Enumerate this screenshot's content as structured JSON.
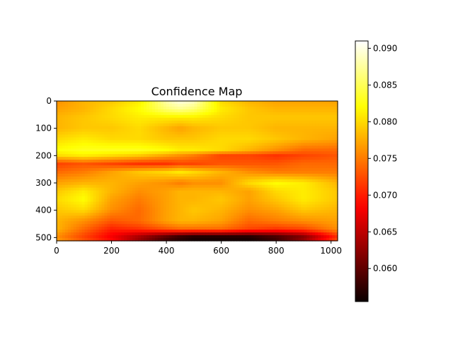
{
  "chart_data": {
    "type": "heatmap",
    "title": "Confidence Map",
    "xlabel": "",
    "ylabel": "",
    "colormap": "hot",
    "x_ticks": [
      "0",
      "200",
      "400",
      "600",
      "800",
      "1000"
    ],
    "y_ticks": [
      "0",
      "100",
      "200",
      "300",
      "400",
      "500"
    ],
    "xlim": [
      0,
      1024
    ],
    "ylim": [
      512,
      0
    ],
    "colorbar": {
      "ticks": [
        "0.060",
        "0.065",
        "0.070",
        "0.075",
        "0.080",
        "0.085",
        "0.090"
      ],
      "range": [
        0.0555,
        0.091
      ]
    },
    "grid": false,
    "x_samples": [
      0,
      100,
      200,
      300,
      400,
      450,
      500,
      600,
      700,
      800,
      900,
      1024
    ],
    "y_samples": [
      0,
      30,
      60,
      100,
      140,
      180,
      200,
      230,
      260,
      300,
      330,
      360,
      400,
      440,
      470,
      495,
      512
    ],
    "values": [
      [
        0.076,
        0.078,
        0.079,
        0.081,
        0.088,
        0.09,
        0.089,
        0.08,
        0.078,
        0.077,
        0.077,
        0.077
      ],
      [
        0.077,
        0.078,
        0.08,
        0.082,
        0.086,
        0.087,
        0.086,
        0.081,
        0.079,
        0.078,
        0.078,
        0.078
      ],
      [
        0.078,
        0.079,
        0.08,
        0.081,
        0.081,
        0.081,
        0.081,
        0.08,
        0.079,
        0.079,
        0.079,
        0.079
      ],
      [
        0.078,
        0.079,
        0.079,
        0.08,
        0.078,
        0.077,
        0.078,
        0.079,
        0.079,
        0.078,
        0.078,
        0.078
      ],
      [
        0.08,
        0.081,
        0.08,
        0.08,
        0.079,
        0.079,
        0.079,
        0.08,
        0.08,
        0.079,
        0.078,
        0.077
      ],
      [
        0.082,
        0.083,
        0.083,
        0.083,
        0.082,
        0.081,
        0.081,
        0.08,
        0.078,
        0.076,
        0.074,
        0.074
      ],
      [
        0.08,
        0.081,
        0.08,
        0.079,
        0.077,
        0.076,
        0.075,
        0.072,
        0.072,
        0.071,
        0.072,
        0.073
      ],
      [
        0.072,
        0.073,
        0.072,
        0.071,
        0.071,
        0.072,
        0.072,
        0.073,
        0.073,
        0.073,
        0.074,
        0.074
      ],
      [
        0.074,
        0.075,
        0.077,
        0.079,
        0.08,
        0.081,
        0.08,
        0.078,
        0.076,
        0.075,
        0.075,
        0.075
      ],
      [
        0.077,
        0.078,
        0.078,
        0.077,
        0.076,
        0.075,
        0.076,
        0.076,
        0.08,
        0.082,
        0.081,
        0.078
      ],
      [
        0.079,
        0.081,
        0.078,
        0.076,
        0.077,
        0.078,
        0.078,
        0.078,
        0.077,
        0.08,
        0.081,
        0.079
      ],
      [
        0.08,
        0.082,
        0.077,
        0.075,
        0.077,
        0.078,
        0.078,
        0.079,
        0.077,
        0.079,
        0.081,
        0.079
      ],
      [
        0.079,
        0.08,
        0.076,
        0.074,
        0.077,
        0.078,
        0.079,
        0.078,
        0.076,
        0.077,
        0.079,
        0.078
      ],
      [
        0.078,
        0.076,
        0.073,
        0.074,
        0.077,
        0.078,
        0.078,
        0.077,
        0.074,
        0.075,
        0.076,
        0.077
      ],
      [
        0.078,
        0.074,
        0.07,
        0.071,
        0.073,
        0.074,
        0.074,
        0.074,
        0.072,
        0.071,
        0.072,
        0.076
      ],
      [
        0.076,
        0.072,
        0.068,
        0.064,
        0.06,
        0.058,
        0.057,
        0.057,
        0.057,
        0.059,
        0.062,
        0.071
      ],
      [
        0.077,
        0.073,
        0.069,
        0.063,
        0.058,
        0.057,
        0.056,
        0.056,
        0.056,
        0.058,
        0.063,
        0.073
      ]
    ]
  }
}
